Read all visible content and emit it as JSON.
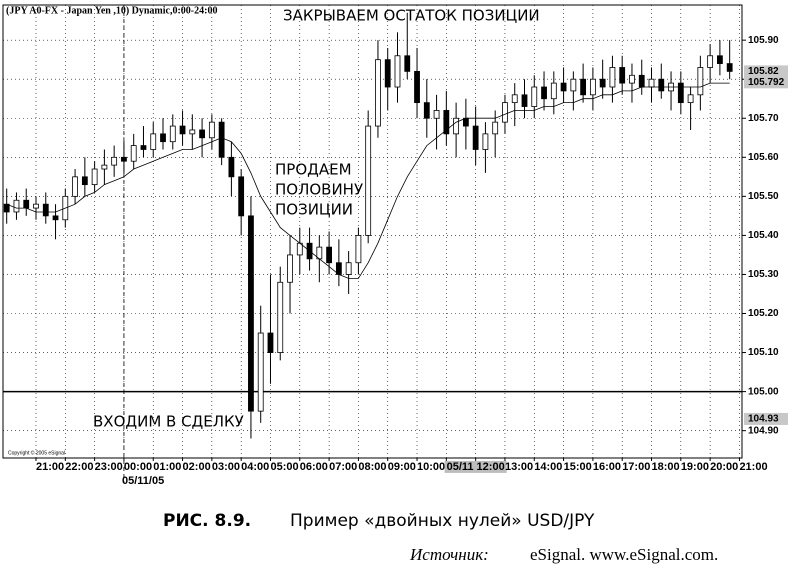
{
  "chart_data": {
    "type": "candlestick",
    "title": "(JPY A0-FX - Japan Yen ,10) Dynamic,0:00-24:00",
    "copyright": "Copyright © 2005 eSignal",
    "date_label": "05/11/05",
    "annotations": [
      "ЗАКРЫВАЕМ ОСТАТОК ПОЗИЦИИ",
      "ПРОДАЕМ",
      "ПОЛОВИНУ",
      "ПОЗИЦИИ",
      "ВХОДИМ В СДЕЛКУ"
    ],
    "categories": [
      null,
      null,
      null,
      "21:00",
      null,
      null,
      "22:00",
      null,
      null,
      "23:00",
      null,
      null,
      "00:00",
      null,
      null,
      "01:00",
      null,
      null,
      "02:00",
      null,
      null,
      "03:00",
      null,
      null,
      "04:00",
      null,
      null,
      "05:00",
      null,
      null,
      "06:00",
      null,
      null,
      "07:00",
      null,
      null,
      "08:00",
      null,
      null,
      "09:00",
      null,
      null,
      "10:00",
      null,
      null,
      "11:00",
      null,
      null,
      "05/11 12:00",
      null,
      null,
      "13:00",
      null,
      null,
      "14:00",
      null,
      null,
      "15:00",
      null,
      null,
      "16:00",
      null,
      null,
      "17:00",
      null,
      null,
      "18:00",
      null,
      null,
      "19:00",
      null,
      null,
      "20:00",
      null,
      null,
      "21:00"
    ],
    "open": [
      105.48,
      105.46,
      105.49,
      105.47,
      105.48,
      105.45,
      105.44,
      105.5,
      105.55,
      105.53,
      105.57,
      105.58,
      105.6,
      105.59,
      105.63,
      105.62,
      105.66,
      105.64,
      105.68,
      105.66,
      105.67,
      105.65,
      105.69,
      105.6,
      105.55,
      105.45,
      104.95,
      105.15,
      105.1,
      105.28,
      105.35,
      105.38,
      105.34,
      105.37,
      105.33,
      105.3,
      105.33,
      105.4,
      105.68,
      105.85,
      105.78,
      105.86,
      105.82,
      105.74,
      105.7,
      105.72,
      105.66,
      105.7,
      105.68,
      105.62,
      105.66,
      105.69,
      105.74,
      105.76,
      105.73,
      105.78,
      105.75,
      105.79,
      105.77,
      105.8,
      105.76,
      105.8,
      105.78,
      105.83,
      105.79,
      105.81,
      105.78,
      105.8,
      105.77,
      105.79,
      105.74,
      105.76,
      105.83,
      105.86,
      105.84,
      null
    ],
    "high": [
      105.52,
      105.51,
      105.52,
      105.5,
      105.51,
      105.48,
      105.52,
      105.57,
      105.6,
      105.59,
      105.62,
      105.63,
      105.64,
      105.66,
      105.68,
      105.69,
      105.7,
      105.71,
      105.72,
      105.71,
      105.7,
      105.71,
      105.7,
      105.64,
      105.57,
      105.5,
      105.22,
      105.3,
      105.32,
      105.4,
      105.42,
      105.42,
      105.4,
      105.41,
      105.39,
      105.36,
      105.42,
      105.72,
      105.9,
      105.88,
      105.92,
      105.97,
      105.88,
      105.8,
      105.76,
      105.77,
      105.74,
      105.75,
      105.73,
      105.69,
      105.72,
      105.76,
      105.79,
      105.8,
      105.81,
      105.82,
      105.82,
      105.83,
      105.82,
      105.84,
      105.83,
      105.85,
      105.86,
      105.86,
      105.84,
      105.85,
      105.83,
      105.84,
      105.82,
      105.82,
      105.78,
      105.86,
      105.89,
      105.9,
      105.9,
      null
    ],
    "low": [
      105.43,
      105.44,
      105.45,
      105.44,
      105.43,
      105.39,
      105.42,
      105.48,
      105.5,
      105.51,
      105.53,
      105.55,
      105.56,
      105.57,
      105.6,
      105.6,
      105.62,
      105.62,
      105.63,
      105.62,
      105.6,
      105.62,
      105.58,
      105.5,
      105.4,
      104.88,
      104.92,
      105.02,
      105.08,
      105.2,
      105.3,
      105.31,
      105.28,
      105.3,
      105.27,
      105.25,
      105.3,
      105.38,
      105.65,
      105.72,
      105.74,
      105.8,
      105.7,
      105.65,
      105.62,
      105.63,
      105.6,
      105.62,
      105.58,
      105.56,
      105.6,
      105.66,
      105.68,
      105.7,
      105.7,
      105.72,
      105.71,
      105.74,
      105.72,
      105.74,
      105.72,
      105.75,
      105.74,
      105.76,
      105.74,
      105.76,
      105.74,
      105.75,
      105.72,
      105.71,
      105.67,
      105.72,
      105.79,
      105.81,
      105.8,
      null
    ],
    "close": [
      105.46,
      105.49,
      105.47,
      105.48,
      105.45,
      105.44,
      105.5,
      105.55,
      105.53,
      105.57,
      105.58,
      105.6,
      105.59,
      105.63,
      105.62,
      105.66,
      105.64,
      105.68,
      105.66,
      105.67,
      105.65,
      105.69,
      105.6,
      105.55,
      105.45,
      104.95,
      105.15,
      105.1,
      105.28,
      105.35,
      105.38,
      105.34,
      105.37,
      105.33,
      105.3,
      105.33,
      105.4,
      105.68,
      105.85,
      105.78,
      105.86,
      105.82,
      105.74,
      105.7,
      105.72,
      105.66,
      105.7,
      105.68,
      105.62,
      105.66,
      105.69,
      105.74,
      105.76,
      105.73,
      105.78,
      105.75,
      105.79,
      105.77,
      105.8,
      105.76,
      105.8,
      105.78,
      105.83,
      105.79,
      105.81,
      105.78,
      105.8,
      105.77,
      105.79,
      105.74,
      105.76,
      105.83,
      105.86,
      105.84,
      105.82,
      null
    ],
    "up_color": "#ffffff",
    "down_color": "#000000",
    "ma": {
      "color": "#000000",
      "values": [
        105.48,
        105.47,
        105.47,
        105.46,
        105.46,
        105.46,
        105.47,
        105.48,
        105.5,
        105.51,
        105.53,
        105.54,
        105.55,
        105.57,
        105.58,
        105.59,
        105.6,
        105.61,
        105.62,
        105.62,
        105.63,
        105.64,
        105.65,
        105.64,
        105.61,
        105.56,
        105.5,
        105.46,
        105.42,
        105.4,
        105.38,
        105.36,
        105.34,
        105.32,
        105.3,
        105.29,
        105.29,
        105.33,
        105.38,
        105.44,
        105.5,
        105.55,
        105.59,
        105.63,
        105.65,
        105.67,
        105.69,
        105.7,
        105.7,
        105.7,
        105.7,
        105.71,
        105.72,
        105.72,
        105.72,
        105.73,
        105.73,
        105.74,
        105.74,
        105.75,
        105.75,
        105.76,
        105.76,
        105.77,
        105.77,
        105.78,
        105.78,
        105.78,
        105.78,
        105.78,
        105.78,
        105.78,
        105.79,
        105.79,
        105.79,
        null
      ]
    },
    "hline": 105,
    "price_labels": [
      105.82,
      105.792,
      104.93
    ],
    "ylim": [
      104.83,
      105.99
    ],
    "yticks": [
      {
        "value": 104.9,
        "label": "104.90"
      },
      {
        "value": 105.0,
        "label": "105.00"
      },
      {
        "value": 105.1,
        "label": "105.10"
      },
      {
        "value": 105.2,
        "label": "105.20"
      },
      {
        "value": 105.3,
        "label": "105.30"
      },
      {
        "value": 105.4,
        "label": "105.40"
      },
      {
        "value": 105.5,
        "label": "105.50"
      },
      {
        "value": 105.6,
        "label": "105.60"
      },
      {
        "value": 105.7,
        "label": "105.70"
      },
      {
        "value": 105.8,
        "label": "105.80"
      },
      {
        "value": 105.9,
        "label": "105.90"
      }
    ],
    "grid": true
  },
  "caption": {
    "label": "РИС. 8.9.",
    "text": "Пример «двойных нулей» USD/JPY",
    "source_label": "Источник:",
    "source": "eSignal. www.eSignal.com."
  }
}
